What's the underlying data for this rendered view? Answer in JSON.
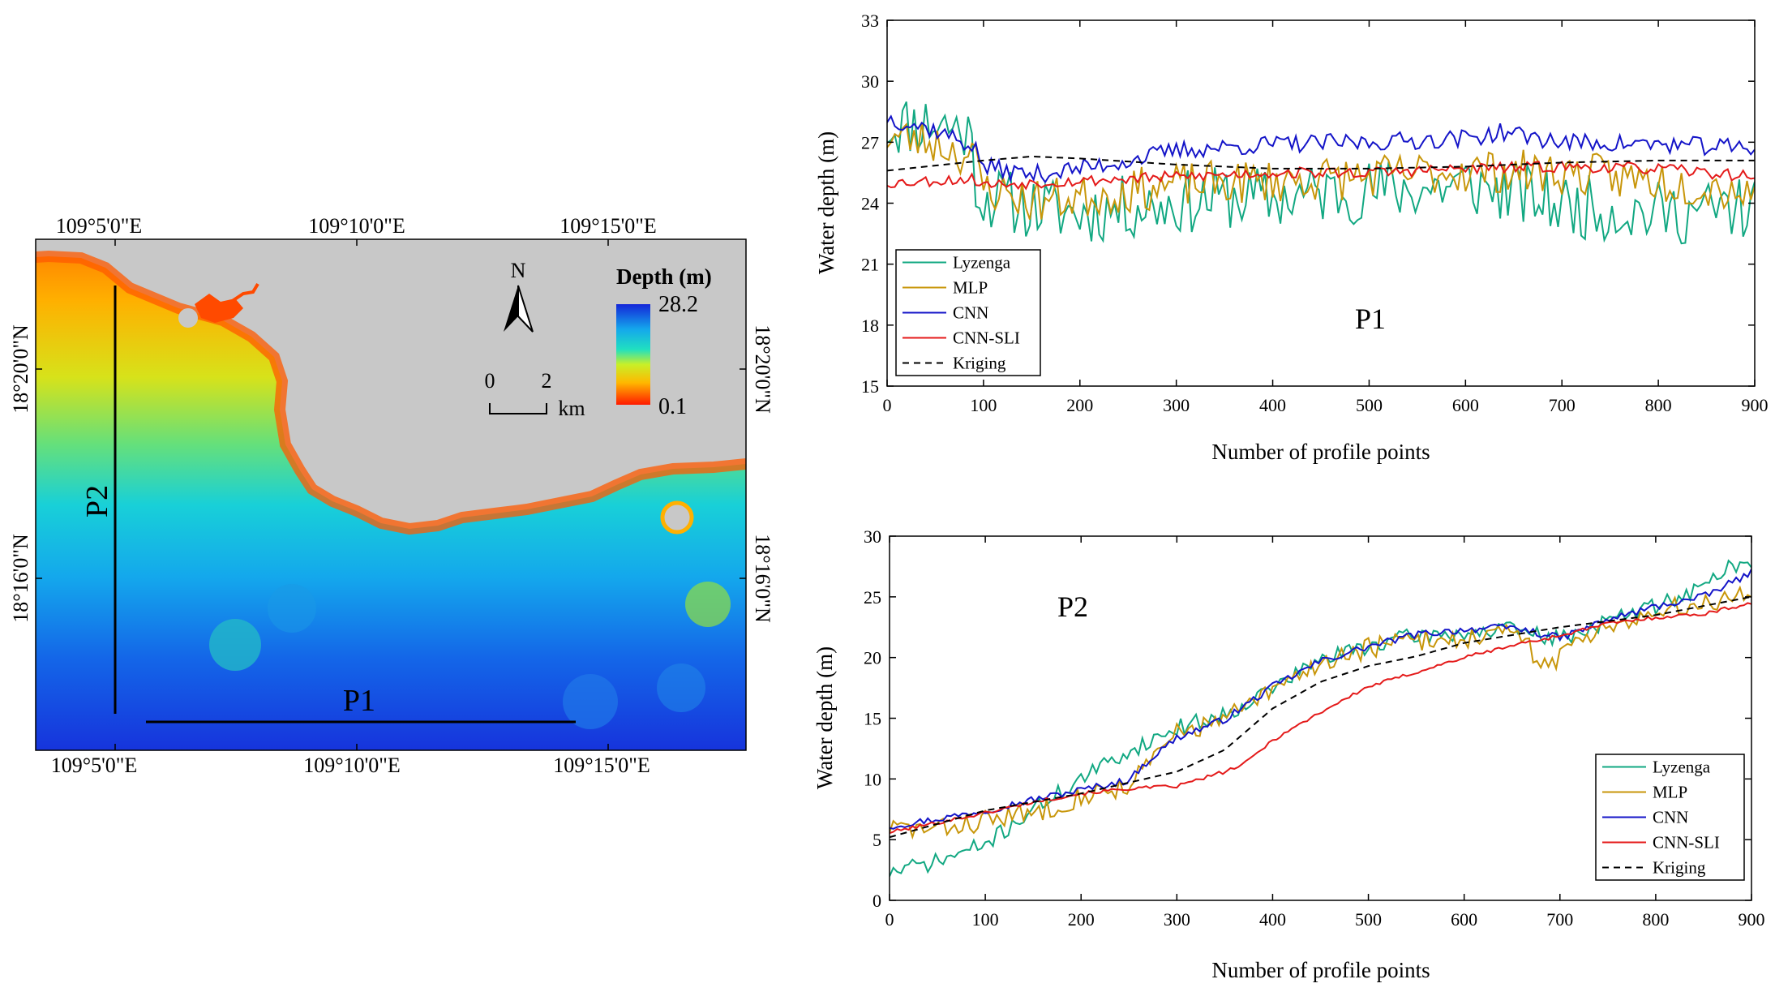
{
  "map": {
    "top_lon_labels": [
      "109°5'0\"E",
      "109°10'0\"E",
      "109°15'0\"E"
    ],
    "bottom_lon_labels": [
      "109°5'0\"E",
      "109°10'0\"E",
      "109°15'0\"E"
    ],
    "left_lat_labels": [
      "18°20'0\"N",
      "18°16'0\"N"
    ],
    "right_lat_labels": [
      "18°20'0\"N",
      "18°16'0\"N"
    ],
    "north_label": "N",
    "scale_labels": [
      "0",
      "2"
    ],
    "scale_unit": "km",
    "legend_title": "Depth (m)",
    "legend_max": "28.2",
    "legend_min": "0.1",
    "profile_p1": "P1",
    "profile_p2": "P2",
    "colors": {
      "land": "#c8c8c8",
      "deep": "#1434e0",
      "mid": "#18c8e8",
      "shallow": "#ffd000",
      "coast": "#ff3a00"
    }
  },
  "chart_data": [
    {
      "type": "line",
      "title": "",
      "annotation": "P1",
      "xlabel": "Number of profile points",
      "ylabel": "Water depth (m)",
      "xlim": [
        0,
        900
      ],
      "ylim": [
        15,
        33
      ],
      "xticks": [
        "0",
        "100",
        "200",
        "300",
        "400",
        "500",
        "600",
        "700",
        "800",
        "900"
      ],
      "yticks": [
        "15",
        "18",
        "21",
        "24",
        "27",
        "30",
        "33"
      ],
      "legend_position": "bottom-left",
      "series": [
        {
          "name": "Lyzenga",
          "color": "#12a882",
          "dash": "",
          "noise": 1.6,
          "seed": 11,
          "x": [
            0,
            50,
            85,
            95,
            150,
            200,
            250,
            300,
            350,
            400,
            450,
            500,
            550,
            600,
            650,
            700,
            750,
            800,
            850,
            900
          ],
          "values": [
            27.8,
            28.0,
            27.5,
            24.4,
            23.8,
            23.5,
            23.8,
            24.0,
            24.3,
            24.2,
            24.5,
            24.6,
            24.7,
            24.9,
            24.5,
            23.9,
            23.7,
            23.5,
            23.6,
            23.8
          ]
        },
        {
          "name": "MLP",
          "color": "#c8960a",
          "dash": "",
          "noise": 1.1,
          "seed": 23,
          "x": [
            0,
            50,
            90,
            100,
            150,
            200,
            300,
            400,
            500,
            600,
            700,
            800,
            900
          ],
          "values": [
            27.3,
            27.0,
            26.2,
            24.8,
            24.1,
            24.3,
            24.9,
            25.1,
            25.3,
            25.6,
            25.5,
            25.1,
            24.6
          ]
        },
        {
          "name": "CNN",
          "color": "#1414c8",
          "dash": "",
          "noise": 0.45,
          "seed": 37,
          "x": [
            0,
            50,
            90,
            100,
            150,
            200,
            250,
            300,
            400,
            500,
            600,
            640,
            700,
            800,
            900
          ],
          "values": [
            28.2,
            27.6,
            26.8,
            25.8,
            25.4,
            25.7,
            26.1,
            26.6,
            26.9,
            27.0,
            27.2,
            27.5,
            27.0,
            26.9,
            26.7
          ]
        },
        {
          "name": "CNN-SLI",
          "color": "#e41a1a",
          "dash": "",
          "noise": 0.28,
          "seed": 53,
          "x": [
            0,
            90,
            100,
            200,
            300,
            400,
            500,
            600,
            700,
            800,
            900
          ],
          "values": [
            25.0,
            25.2,
            24.9,
            25.1,
            25.3,
            25.5,
            25.5,
            25.7,
            25.8,
            25.7,
            25.3
          ]
        },
        {
          "name": "Kriging",
          "color": "#000000",
          "dash": "8,6",
          "noise": 0,
          "seed": 1,
          "x": [
            0,
            100,
            150,
            200,
            300,
            400,
            500,
            600,
            700,
            800,
            900
          ],
          "values": [
            25.6,
            26.1,
            26.3,
            26.2,
            25.9,
            25.7,
            25.7,
            25.8,
            26.0,
            26.1,
            26.1
          ]
        }
      ]
    },
    {
      "type": "line",
      "title": "",
      "annotation": "P2",
      "xlabel": "Number of profile points",
      "ylabel": "Water depth (m)",
      "xlim": [
        0,
        900
      ],
      "ylim": [
        0,
        30
      ],
      "xticks": [
        "0",
        "100",
        "200",
        "300",
        "400",
        "500",
        "600",
        "700",
        "800",
        "900"
      ],
      "yticks": [
        "0",
        "5",
        "10",
        "15",
        "20",
        "25",
        "30"
      ],
      "legend_position": "bottom-right",
      "series": [
        {
          "name": "Lyzenga",
          "color": "#12a882",
          "dash": "",
          "noise": 0.7,
          "seed": 71,
          "x": [
            0,
            50,
            100,
            150,
            200,
            250,
            300,
            350,
            400,
            450,
            500,
            550,
            600,
            650,
            700,
            750,
            800,
            850,
            880,
            900
          ],
          "values": [
            2.3,
            3.2,
            4.6,
            7.5,
            10.0,
            12.3,
            14.2,
            15.3,
            17.5,
            19.8,
            21.0,
            21.8,
            22.0,
            22.3,
            21.5,
            23.0,
            24.3,
            25.8,
            27.8,
            27.5
          ]
        },
        {
          "name": "MLP",
          "color": "#c8960a",
          "dash": "",
          "noise": 0.9,
          "seed": 83,
          "x": [
            0,
            50,
            100,
            150,
            200,
            250,
            280,
            300,
            350,
            400,
            450,
            500,
            550,
            600,
            650,
            690,
            710,
            750,
            800,
            850,
            900
          ],
          "values": [
            6.0,
            5.8,
            6.6,
            7.2,
            8.6,
            9.5,
            12.0,
            13.8,
            14.9,
            17.2,
            19.6,
            20.8,
            21.4,
            21.6,
            22.0,
            19.2,
            21.0,
            22.8,
            23.7,
            24.5,
            25.6
          ]
        },
        {
          "name": "CNN",
          "color": "#1414c8",
          "dash": "",
          "noise": 0.3,
          "seed": 97,
          "x": [
            0,
            50,
            100,
            150,
            200,
            250,
            270,
            300,
            350,
            400,
            450,
            500,
            550,
            600,
            650,
            700,
            750,
            800,
            850,
            900
          ],
          "values": [
            6.1,
            6.7,
            7.4,
            8.3,
            9.1,
            9.9,
            11.5,
            13.4,
            14.9,
            17.6,
            19.7,
            20.9,
            21.9,
            22.3,
            22.5,
            21.6,
            23.1,
            24.2,
            25.0,
            27.0
          ]
        },
        {
          "name": "CNN-SLI",
          "color": "#e41a1a",
          "dash": "",
          "noise": 0.15,
          "seed": 101,
          "x": [
            0,
            50,
            100,
            150,
            200,
            250,
            300,
            350,
            370,
            400,
            450,
            500,
            550,
            600,
            650,
            700,
            750,
            800,
            850,
            900
          ],
          "values": [
            5.6,
            6.4,
            7.2,
            8.1,
            8.8,
            9.2,
            9.4,
            10.6,
            11.2,
            13.2,
            15.5,
            17.6,
            18.8,
            20.0,
            21.0,
            21.8,
            22.8,
            23.3,
            23.6,
            24.5
          ]
        },
        {
          "name": "Kriging",
          "color": "#000000",
          "dash": "8,6",
          "noise": 0,
          "seed": 1,
          "x": [
            0,
            100,
            200,
            300,
            350,
            400,
            450,
            500,
            550,
            600,
            700,
            800,
            900
          ],
          "values": [
            5.2,
            7.4,
            8.8,
            10.6,
            12.4,
            15.8,
            18.0,
            19.3,
            20.1,
            21.2,
            22.5,
            23.5,
            25.0
          ]
        }
      ]
    }
  ]
}
